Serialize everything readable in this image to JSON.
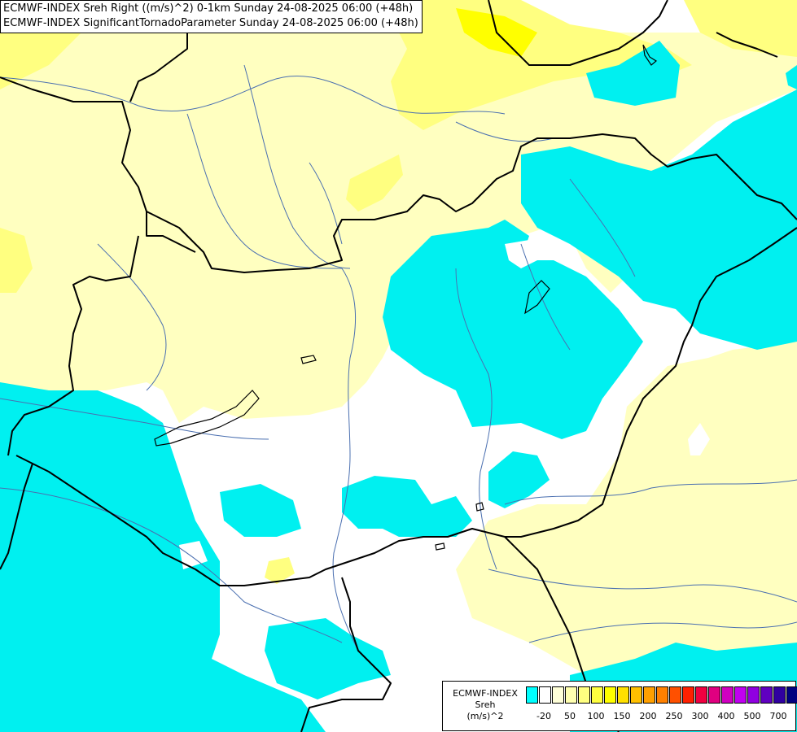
{
  "map": {
    "title_line1": "ECMWF-INDEX Sreh Right ((m/s)^2) 0-1km Sunday 24-08-2025 06:00 (+48h)",
    "title_line2": "ECMWF-INDEX SignificantTornadoParameter Sunday 24-08-2025 06:00 (+48h)",
    "colors": {
      "background": "#ffffff",
      "cyan": "#00f0f0",
      "light_yellow": "#ffffc0",
      "yellow": "#ffff80",
      "border": "#000000",
      "river": "#4a6fb0"
    }
  },
  "legend": {
    "line1": "ECMWF-INDEX",
    "line2": "Sreh",
    "line3": "(m/s)^2",
    "colors": [
      "#00ffff",
      "#ffffff",
      "#ffffd8",
      "#ffffb0",
      "#ffff80",
      "#ffff40",
      "#ffff00",
      "#ffe000",
      "#ffc000",
      "#ffa000",
      "#ff8000",
      "#ff5000",
      "#ff2000",
      "#f00040",
      "#e00080",
      "#d000c0",
      "#c000f0",
      "#9000e0",
      "#6000c0",
      "#3000a0",
      "#000080"
    ],
    "ticks": [
      "-20",
      "50",
      "100",
      "150",
      "200",
      "250",
      "300",
      "400",
      "500",
      "700"
    ]
  }
}
